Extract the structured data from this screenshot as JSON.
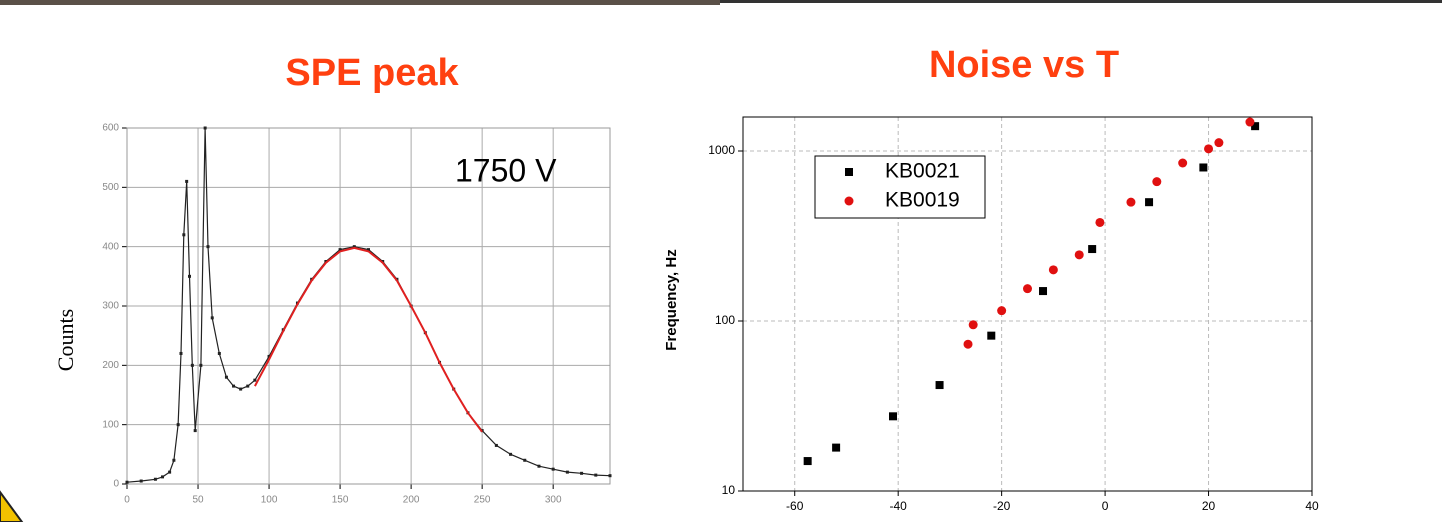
{
  "chart_data": [
    {
      "type": "line",
      "title": "SPE peak",
      "ylabel": "Counts",
      "annotation": "1750 V",
      "xlim": [
        0,
        340
      ],
      "xticks": [
        0,
        50,
        100,
        150,
        200,
        250,
        300
      ],
      "ylim": [
        0,
        600
      ],
      "yticks": [
        0,
        100,
        200,
        300,
        400,
        500,
        600
      ],
      "grid": true,
      "x": [
        0,
        10,
        20,
        25,
        30,
        33,
        36,
        38,
        40,
        42,
        44,
        46,
        48,
        52,
        55,
        57,
        60,
        65,
        70,
        75,
        80,
        85,
        90,
        100,
        110,
        120,
        130,
        140,
        150,
        160,
        170,
        180,
        190,
        200,
        210,
        220,
        230,
        240,
        250,
        260,
        270,
        280,
        290,
        300,
        310,
        320,
        330,
        340
      ],
      "series": [
        {
          "color": "#222222",
          "values": [
            3,
            5,
            8,
            12,
            20,
            40,
            100,
            220,
            420,
            510,
            350,
            200,
            90,
            200,
            600,
            400,
            280,
            220,
            180,
            165,
            160,
            165,
            175,
            215,
            260,
            305,
            345,
            375,
            395,
            400,
            395,
            375,
            345,
            300,
            255,
            205,
            160,
            120,
            90,
            65,
            50,
            40,
            30,
            25,
            20,
            18,
            15,
            14
          ]
        },
        {
          "color": "#e02020",
          "values": [
            null,
            null,
            null,
            null,
            null,
            null,
            null,
            null,
            null,
            null,
            null,
            null,
            null,
            null,
            null,
            null,
            null,
            null,
            null,
            null,
            null,
            null,
            165,
            210,
            258,
            303,
            343,
            373,
            392,
            398,
            392,
            373,
            343,
            300,
            255,
            205,
            160,
            120,
            88,
            null,
            null,
            null,
            null,
            null,
            null,
            null,
            null,
            null
          ]
        }
      ]
    },
    {
      "type": "scatter",
      "title": "Noise vs T",
      "ylabel": "Frequency, Hz",
      "log_y": true,
      "xlim": [
        -70,
        40
      ],
      "xticks": [
        -60,
        -40,
        -20,
        0,
        20,
        40
      ],
      "ylim": [
        10,
        1585
      ],
      "yticks": [
        10,
        100,
        1000
      ],
      "grid": true,
      "series": [
        {
          "name": "KB0021",
          "color": "#000000",
          "marker": "square",
          "x": [
            -57.5,
            -52,
            -41,
            -32,
            -22,
            -12,
            -2.5,
            8.5,
            19,
            29
          ],
          "values": [
            15,
            18,
            27.5,
            42,
            82,
            150,
            265,
            500,
            800,
            1400
          ]
        },
        {
          "name": "KB0019",
          "color": "#e01010",
          "marker": "circle",
          "x": [
            -26.5,
            -25.5,
            -20,
            -15,
            -10,
            -5,
            -1,
            5,
            10,
            15,
            20,
            22,
            28
          ],
          "values": [
            73,
            95,
            115,
            155,
            200,
            245,
            380,
            500,
            660,
            850,
            1030,
            1120,
            1480
          ]
        }
      ]
    }
  ]
}
